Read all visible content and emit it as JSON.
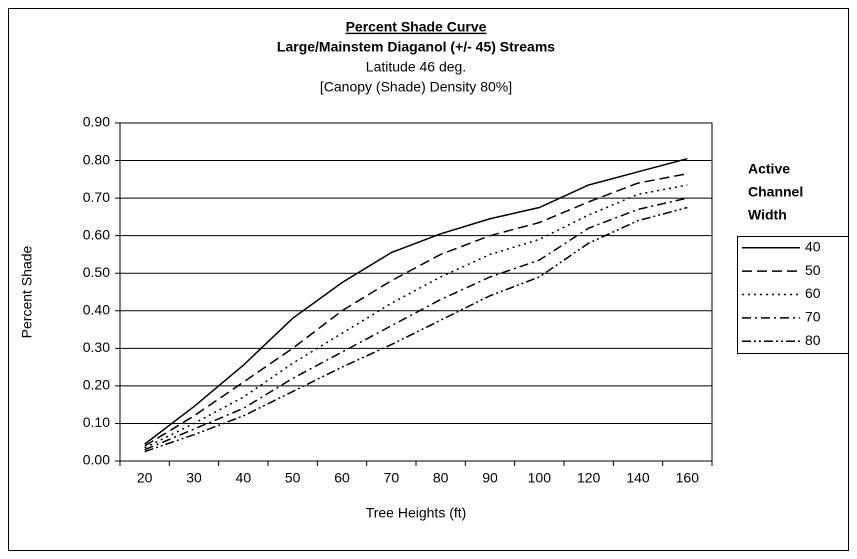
{
  "chart_data": {
    "type": "line",
    "title": "Percent Shade Curve",
    "subtitle": "Large/Mainstem Diaganol (+/- 45) Streams",
    "subtitle2": "Latitude 46 deg.",
    "subtitle3": "[Canopy (Shade) Density 80%]",
    "x_label": "Tree Heights (ft)",
    "y_label": "Percent Shade",
    "legend_title": [
      "Active",
      "Channel",
      "Width"
    ],
    "legend_position": "right",
    "grid": true,
    "categories": [
      "20",
      "30",
      "40",
      "50",
      "60",
      "70",
      "80",
      "90",
      "100",
      "120",
      "140",
      "160"
    ],
    "ylim": [
      0,
      0.9
    ],
    "yticks": [
      {
        "value": 0,
        "label": "0.00"
      },
      {
        "value": 0.1,
        "label": "0.10"
      },
      {
        "value": 0.2,
        "label": "0.20"
      },
      {
        "value": 0.3,
        "label": "0.30"
      },
      {
        "value": 0.4,
        "label": "0.40"
      },
      {
        "value": 0.5,
        "label": "0.50"
      },
      {
        "value": 0.6,
        "label": "0.60"
      },
      {
        "value": 0.7,
        "label": "0.70"
      },
      {
        "value": 0.8,
        "label": "0.80"
      },
      {
        "value": 0.9,
        "label": "0.90"
      }
    ],
    "series": [
      {
        "name": "40",
        "color": "#000000",
        "dash": "solid",
        "values": [
          0.045,
          0.145,
          0.255,
          0.38,
          0.475,
          0.555,
          0.605,
          0.645,
          0.675,
          0.735,
          0.77,
          0.805
        ]
      },
      {
        "name": "50",
        "color": "#000000",
        "dash": "dashed",
        "values": [
          0.04,
          0.12,
          0.21,
          0.3,
          0.4,
          0.48,
          0.55,
          0.6,
          0.635,
          0.69,
          0.74,
          0.765
        ]
      },
      {
        "name": "60",
        "color": "#000000",
        "dash": "dotted",
        "values": [
          0.035,
          0.1,
          0.17,
          0.26,
          0.34,
          0.42,
          0.49,
          0.55,
          0.59,
          0.655,
          0.71,
          0.735
        ]
      },
      {
        "name": "70",
        "color": "#000000",
        "dash": "dashdot",
        "values": [
          0.03,
          0.085,
          0.14,
          0.22,
          0.29,
          0.36,
          0.43,
          0.49,
          0.535,
          0.62,
          0.67,
          0.7
        ]
      },
      {
        "name": "80",
        "color": "#000000",
        "dash": "dashdotdot",
        "values": [
          0.025,
          0.07,
          0.12,
          0.185,
          0.25,
          0.31,
          0.375,
          0.44,
          0.49,
          0.58,
          0.64,
          0.675
        ]
      }
    ]
  }
}
